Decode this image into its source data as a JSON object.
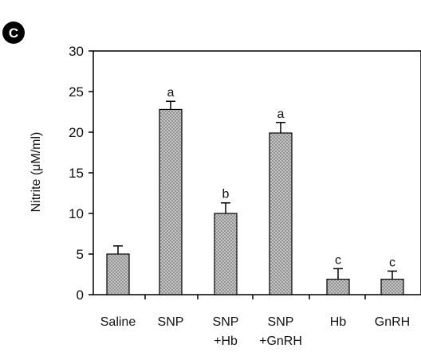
{
  "panel": {
    "letter": "C"
  },
  "chart_data": {
    "type": "bar",
    "ylabel": "Nitrite (μM/ml)",
    "ylim": [
      0,
      30
    ],
    "yticks": [
      "0",
      "5",
      "10",
      "15",
      "20",
      "25",
      "30"
    ],
    "categories": [
      "Saline",
      "SNP",
      "SNP +Hb",
      "SNP +GnRH",
      "Hb",
      "GnRH"
    ],
    "category_lines": [
      [
        "Saline"
      ],
      [
        "SNP"
      ],
      [
        "SNP",
        "+Hb"
      ],
      [
        "SNP",
        "+GnRH"
      ],
      [
        "Hb"
      ],
      [
        "GnRH"
      ]
    ],
    "values": [
      5.0,
      22.8,
      10.0,
      19.9,
      1.9,
      1.9
    ],
    "errors": [
      1.0,
      1.0,
      1.3,
      1.3,
      1.3,
      1.0
    ],
    "significance": [
      "",
      "a",
      "b",
      "a",
      "c",
      "c"
    ],
    "bar_color": "#c8c8c8",
    "bar_pattern_color": "#8a8a8a",
    "grid": false,
    "legend": "none"
  }
}
